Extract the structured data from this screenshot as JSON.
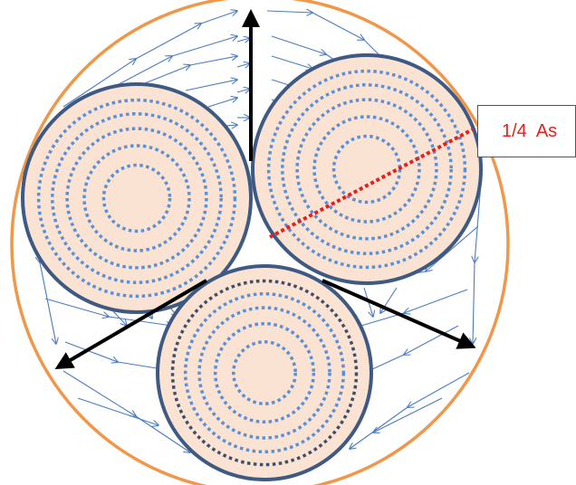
{
  "diagram": {
    "label": "1/4  As"
  },
  "colors": {
    "outer_sheath": "#f0974a",
    "conductor_fill": "#fbe3d4",
    "conductor_edge": "#3e5a82",
    "dotted_rings": "#5b8fd6",
    "dark_ring": "#3d4f6a",
    "field_lines": "#4a7cc4",
    "vector_arrows": "#000000",
    "radius_line": "#e8201c",
    "label_text": "#e8201c"
  }
}
